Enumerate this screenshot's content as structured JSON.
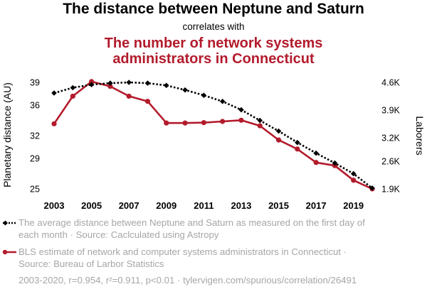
{
  "header": {
    "title": "The distance between Neptune and Saturn",
    "subtitle": "correlates with",
    "title2_line1": "The number of network systems",
    "title2_line2": "administrators in Connecticut"
  },
  "colors": {
    "series1": "#000000",
    "series2": "#b31b2c",
    "muted": "#a6a6a6"
  },
  "legend": {
    "series1_line1": "The average distance between Neptune and Saturn as measured on the first day of",
    "series1_line2": "each month · Source: Caclculated using Astropy",
    "series2_line1": "BLS estimate of network and computer systems administrators in Connecticut ·",
    "series2_line2": "Source: Bureau of Larbor Statistics"
  },
  "footer": "2003-2020, r=0.954, r²=0.911, p<0.01 · tylervigen.com/spurious/correlation/26491",
  "chart_data": {
    "type": "line",
    "x": [
      2003,
      2004,
      2005,
      2006,
      2007,
      2008,
      2009,
      2010,
      2011,
      2012,
      2013,
      2014,
      2015,
      2016,
      2017,
      2018,
      2019,
      2020
    ],
    "xticks": [
      "2003",
      "2005",
      "2007",
      "2009",
      "2011",
      "2013",
      "2015",
      "2017",
      "2019"
    ],
    "xtick_values": [
      2003,
      2005,
      2007,
      2009,
      2011,
      2013,
      2015,
      2017,
      2019
    ],
    "xlim": [
      2003,
      2020
    ],
    "y_left": {
      "label": "Planetary distance (AU)",
      "lim": [
        25,
        39
      ],
      "ticks": [
        25,
        29,
        32,
        36,
        39
      ],
      "tick_labels": [
        "25",
        "29",
        "32",
        "36",
        "39"
      ]
    },
    "y_right": {
      "label": "Laborers",
      "lim": [
        1900,
        4600
      ],
      "ticks": [
        1900,
        2600,
        3200,
        3900,
        4600
      ],
      "tick_labels": [
        "1.9K",
        "2.6K",
        "3.2K",
        "3.9K",
        "4.6K"
      ]
    },
    "series": [
      {
        "axis": "left",
        "style": "dotted",
        "marker": "diamond",
        "values": [
          37.6,
          38.3,
          38.7,
          38.9,
          39.0,
          38.9,
          38.6,
          38.0,
          37.3,
          36.5,
          35.4,
          34.0,
          32.6,
          31.1,
          29.7,
          28.4,
          27.0,
          25.1
        ]
      },
      {
        "axis": "right",
        "style": "solid",
        "marker": "circle",
        "values": [
          3550,
          4250,
          4620,
          4500,
          4250,
          4120,
          3570,
          3570,
          3580,
          3610,
          3640,
          3500,
          3140,
          2910,
          2570,
          2490,
          2120,
          1900
        ]
      }
    ]
  }
}
